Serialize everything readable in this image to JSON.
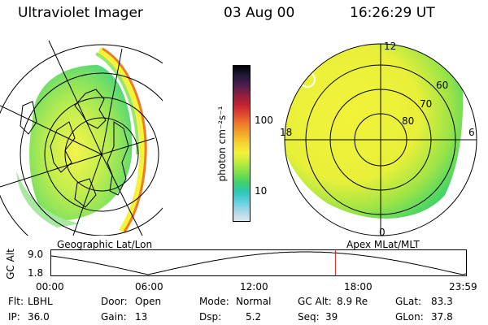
{
  "header": {
    "instrument": "Ultraviolet Imager",
    "date": "03 Aug 00",
    "time": "16:26:29 UT"
  },
  "left_panel": {
    "caption": "Geographic Lat/Lon"
  },
  "right_panel": {
    "caption": "Apex MLat/MLT",
    "mlt_labels": [
      "12",
      "18",
      "6",
      "0"
    ],
    "lat_labels": [
      "60",
      "70",
      "80"
    ]
  },
  "colorbar": {
    "unit": "photon cm⁻²s⁻¹",
    "ticks": [
      "100",
      "10"
    ],
    "colors": [
      "#dde6ee",
      "#aad8e8",
      "#5fd0e0",
      "#2cc6b4",
      "#3fd36a",
      "#7ee04a",
      "#bdec3a",
      "#f2f33a",
      "#f7d531",
      "#f4a826",
      "#ef7b2a",
      "#e04a2e",
      "#c42034",
      "#8d1f3c",
      "#4e1c4e",
      "#201a3a",
      "#000000"
    ]
  },
  "altitude_plot": {
    "ylabel": "GC Alt",
    "y_ticks": [
      "9.0",
      "1.8"
    ],
    "x_ticks": [
      "00:00",
      "06:00",
      "12:00",
      "18:00",
      "23:59"
    ],
    "current_time_hours": 16.44,
    "marker_color": "#e01818"
  },
  "status": {
    "flt_label": "Flt:",
    "flt_value": "LBHL",
    "ip_label": "IP:",
    "ip_value": "36.0",
    "door_label": "Door:",
    "door_value": "Open",
    "gain_label": "Gain:",
    "gain_value": "13",
    "mode_label": "Mode:",
    "mode_value": "Normal",
    "dsp_label": "Dsp:",
    "dsp_value": "5.2",
    "gcalt_label": "GC Alt:",
    "gcalt_value": "8.9 Re",
    "seq_label": "Seq:",
    "seq_value": "39",
    "glat_label": "GLat:",
    "glat_value": "83.3",
    "glon_label": "GLon:",
    "glon_value": "37.8"
  }
}
